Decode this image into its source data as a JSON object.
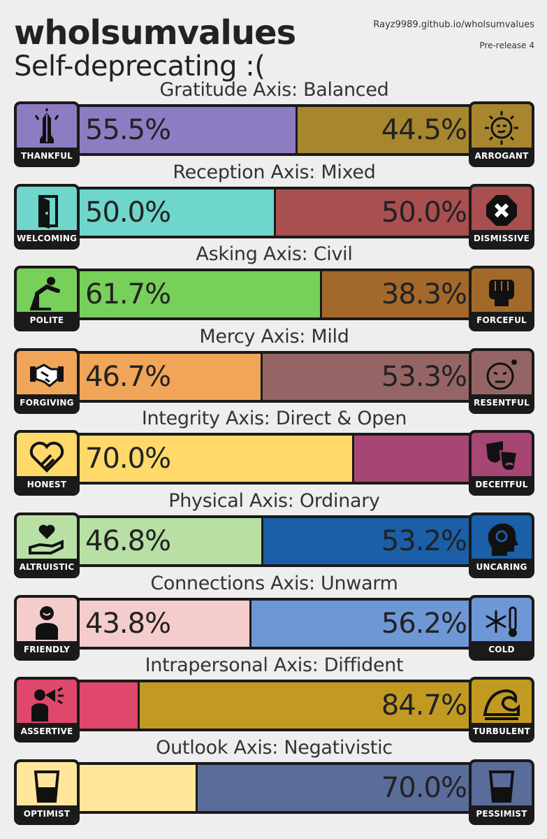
{
  "header": {
    "title": "wholsumvalues",
    "subtitle": "Self-deprecating :(",
    "site": "Rayz9989.github.io/wholsumvalues",
    "version": "Pre-release 4"
  },
  "axes": [
    {
      "title": "Gratitude Axis: Balanced",
      "left": {
        "label": "THANKFUL",
        "icon": "praying-hands-icon",
        "color": "#8e7cc3"
      },
      "right": {
        "label": "ARROGANT",
        "icon": "smug-sun-face-icon",
        "color": "#a8862e"
      },
      "left_pct": "55.5%",
      "right_pct": "44.5%",
      "left_value": 55.5
    },
    {
      "title": "Reception Axis: Mixed",
      "left": {
        "label": "WELCOMING",
        "icon": "open-door-icon",
        "color": "#6fd6cc"
      },
      "right": {
        "label": "DISMISSIVE",
        "icon": "stop-x-icon",
        "color": "#a94f4f"
      },
      "left_pct": "50.0%",
      "right_pct": "50.0%",
      "left_value": 50.0
    },
    {
      "title": "Asking Axis: Civil",
      "left": {
        "label": "POLITE",
        "icon": "bowing-person-icon",
        "color": "#77d05a"
      },
      "right": {
        "label": "FORCEFUL",
        "icon": "fist-icon",
        "color": "#a3692a"
      },
      "left_pct": "61.7%",
      "right_pct": "38.3%",
      "left_value": 61.7
    },
    {
      "title": "Mercy Axis: Mild",
      "left": {
        "label": "FORGIVING",
        "icon": "handshake-icon",
        "color": "#f0a558"
      },
      "right": {
        "label": "RESENTFUL",
        "icon": "annoyed-face-icon",
        "color": "#956565"
      },
      "left_pct": "46.7%",
      "right_pct": "53.3%",
      "left_value": 46.7
    },
    {
      "title": "Integrity Axis: Direct & Open",
      "left": {
        "label": "HONEST",
        "icon": "heart-hand-icon",
        "color": "#ffd96a"
      },
      "right": {
        "label": "DECEITFUL",
        "icon": "theater-masks-icon",
        "color": "#a64674"
      },
      "left_pct": "70.0%",
      "right_pct": "",
      "left_value": 70.0
    },
    {
      "title": "Physical Axis: Ordinary",
      "left": {
        "label": "ALTRUISTIC",
        "icon": "heart-in-hand-icon",
        "color": "#b8dfa4"
      },
      "right": {
        "label": "UNCARING",
        "icon": "head-gears-icon",
        "color": "#1a5fa8"
      },
      "left_pct": "46.8%",
      "right_pct": "53.2%",
      "left_value": 46.8
    },
    {
      "title": "Connections Axis: Unwarm",
      "left": {
        "label": "FRIENDLY",
        "icon": "smiling-person-icon",
        "color": "#f5cccc"
      },
      "right": {
        "label": "COLD",
        "icon": "snowflake-thermometer-icon",
        "color": "#6e97d6"
      },
      "left_pct": "43.8%",
      "right_pct": "56.2%",
      "left_value": 43.8
    },
    {
      "title": "Intrapersonal Axis: Diffident",
      "left": {
        "label": "ASSERTIVE",
        "icon": "megaphone-person-icon",
        "color": "#e0476c"
      },
      "right": {
        "label": "TURBULENT",
        "icon": "wave-icon",
        "color": "#c29a22"
      },
      "left_pct": "",
      "right_pct": "84.7%",
      "left_value": 15.3
    },
    {
      "title": "Outlook Axis: Negativistic",
      "left": {
        "label": "OPTIMIST",
        "icon": "half-full-glass-icon",
        "color": "#ffe69a"
      },
      "right": {
        "label": "PESSIMIST",
        "icon": "half-empty-glass-icon",
        "color": "#5a6c9a"
      },
      "left_pct": "",
      "right_pct": "70.0%",
      "left_value": 30.0
    }
  ]
}
